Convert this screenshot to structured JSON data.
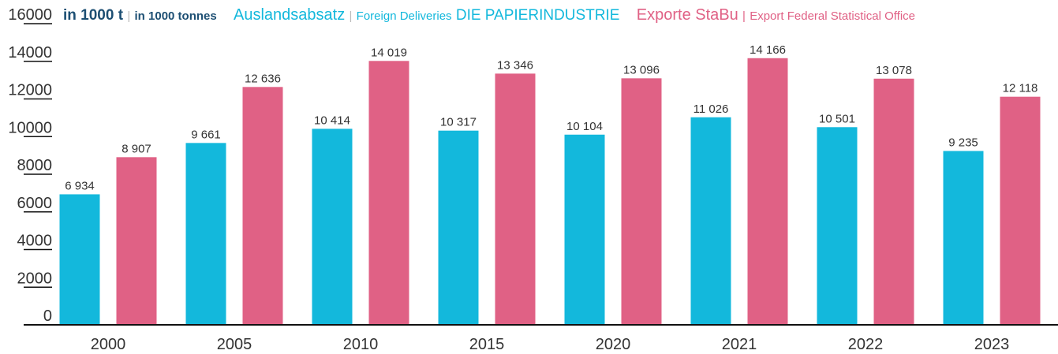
{
  "chart_data": {
    "type": "bar",
    "unit": "in 1000 t",
    "unit_en": "in 1000 tonnes",
    "categories": [
      "2000",
      "2005",
      "2010",
      "2015",
      "2020",
      "2021",
      "2022",
      "2023"
    ],
    "series": [
      {
        "name": "Auslandsabsatz",
        "name_en": "Foreign Deliveries",
        "source": "DIE PAPIERINDUSTRIE",
        "color": "#13b8dc",
        "values": [
          6934,
          9661,
          10414,
          10317,
          10104,
          11026,
          10501,
          9235
        ],
        "value_labels": [
          "6 934",
          "9 661",
          "10 414",
          "10 317",
          "10 104",
          "11 026",
          "10 501",
          "9 235"
        ]
      },
      {
        "name": "Exporte StaBu",
        "name_en": "Export Federal Statistical Office",
        "color": "#e06185",
        "values": [
          8907,
          12636,
          14019,
          13346,
          13096,
          14166,
          13078,
          12118
        ],
        "value_labels": [
          "8 907",
          "12 636",
          "14 019",
          "13 346",
          "13 096",
          "14 166",
          "13 078",
          "12 118"
        ]
      }
    ],
    "ylim": [
      0,
      16000
    ],
    "yticks": [
      0,
      2000,
      4000,
      6000,
      8000,
      10000,
      12000,
      14000,
      16000
    ]
  }
}
